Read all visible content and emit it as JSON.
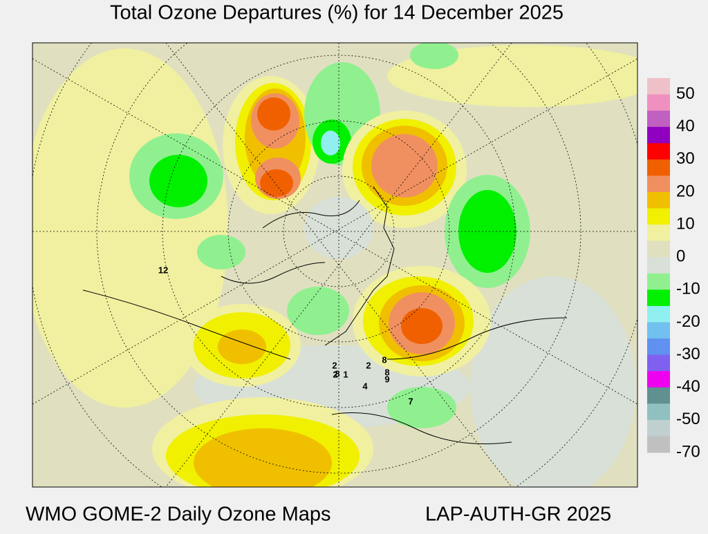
{
  "header": {
    "title": "Total Ozone Departures (%) for 14 December 2025"
  },
  "legend": {
    "labels": [
      50,
      40,
      30,
      20,
      10,
      0,
      -10,
      -20,
      -30,
      -40,
      -50,
      -70
    ],
    "colors": [
      "#f0c0c8",
      "#f090c0",
      "#c060c0",
      "#9000c0",
      "#ff0000",
      "#f06000",
      "#f09060",
      "#f0c000",
      "#f0f000",
      "#f0f0a0",
      "#e0e0c0",
      "#d8e0d8",
      "#90f090",
      "#00f000",
      "#90f0f0",
      "#70c0f0",
      "#6090f0",
      "#8060f0",
      "#f000f0",
      "#609090",
      "#90c0c0",
      "#c0d0d0",
      "#c0c0c0"
    ]
  },
  "map": {
    "station_labels": [
      "12",
      "2",
      "8",
      "1",
      "2",
      "2",
      "8",
      "8",
      "9",
      "4",
      "7"
    ]
  },
  "footer": {
    "left": "WMO GOME-2 Daily Ozone Maps",
    "right": "LAP-AUTH-GR 2025"
  }
}
